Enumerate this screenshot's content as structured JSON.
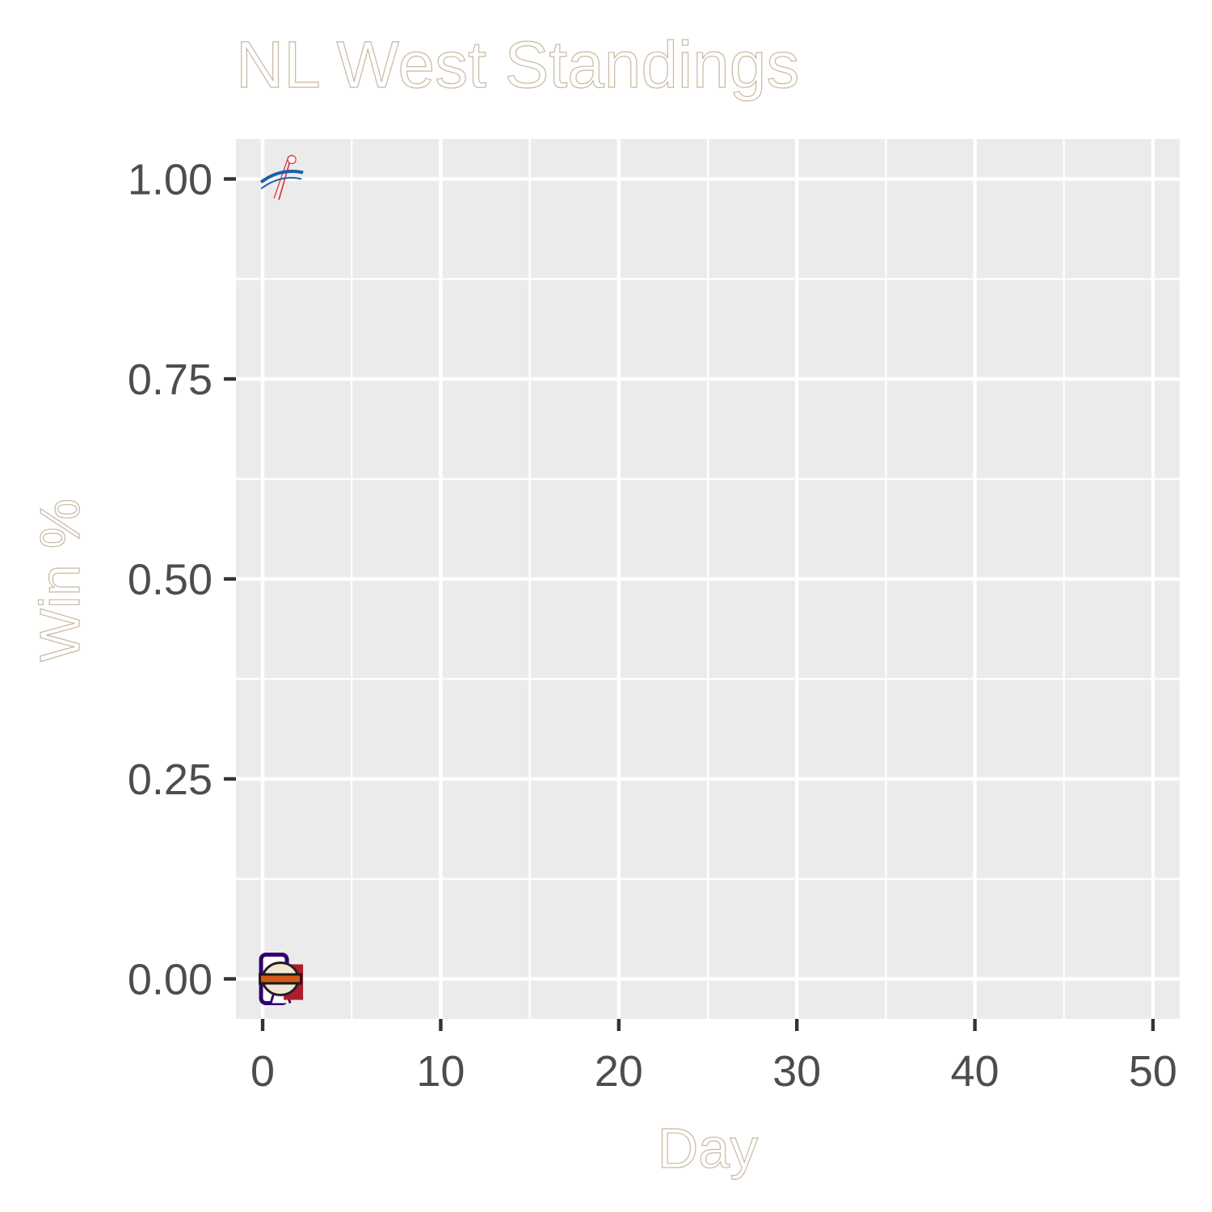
{
  "chart_data": {
    "type": "scatter",
    "title": "NL West Standings",
    "xlabel": "Day",
    "ylabel": "Win %",
    "xlim": [
      -1.5,
      51.5
    ],
    "ylim": [
      -0.05,
      1.05
    ],
    "x_ticks": [
      0,
      10,
      20,
      30,
      40,
      50
    ],
    "x_tick_labels": [
      "0",
      "10",
      "20",
      "30",
      "40",
      "50"
    ],
    "y_ticks": [
      0,
      0.25,
      0.5,
      0.75,
      1.0
    ],
    "y_tick_labels": [
      "0.00",
      "0.25",
      "0.50",
      "0.75",
      "1.00"
    ],
    "grid": true,
    "legend": "none",
    "points": [
      {
        "x": 1,
        "y": 1.0,
        "icon": "dodgers-logo"
      },
      {
        "x": 1,
        "y": 0.0,
        "icon": "rockies-logo"
      },
      {
        "x": 1,
        "y": 0.0,
        "icon": "giants-logo"
      }
    ],
    "colors": {
      "panel": "#ebebeb",
      "grid": "#ffffff",
      "tick_text": "#4d4d4d",
      "dodgers_blue": "#1e5fa8",
      "giants_orange": "#d35a1a",
      "rockies_purple": "#33006f"
    }
  }
}
